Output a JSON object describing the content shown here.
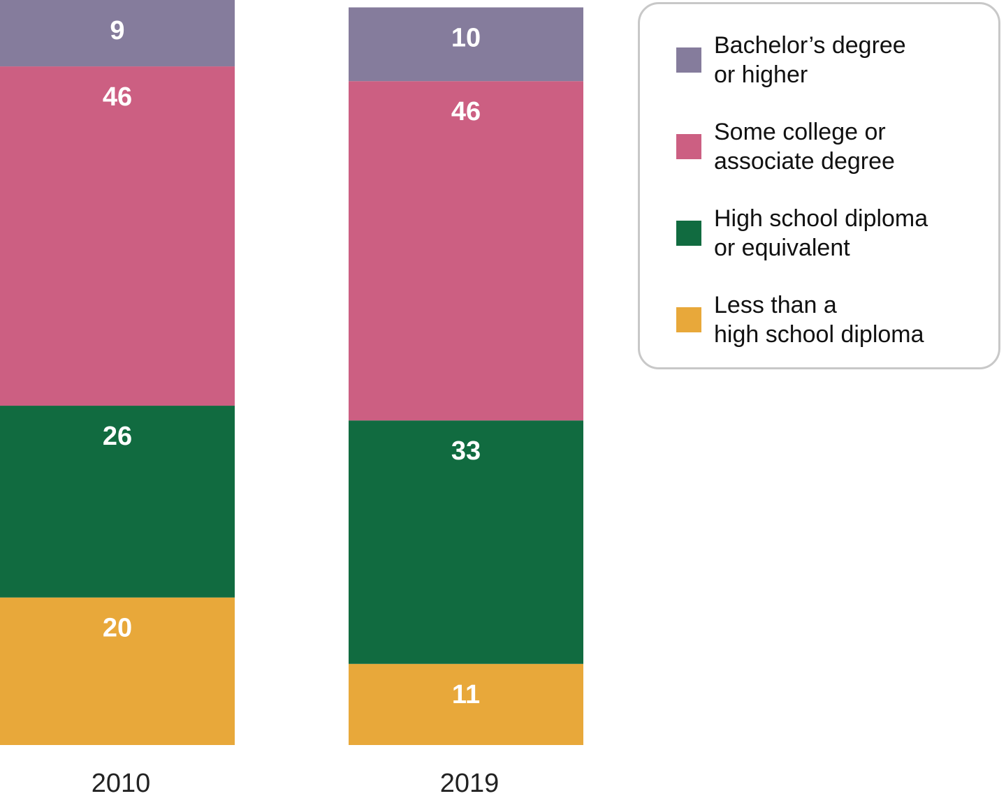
{
  "chart_data": {
    "type": "stacked_bar",
    "categories": [
      "2010",
      "2019"
    ],
    "ylim": [
      0,
      101
    ],
    "series": [
      {
        "name": "Bachelor’s degree\nor higher",
        "color": "#857c9c",
        "values": [
          9,
          10
        ]
      },
      {
        "name": "Some college or\nassociate degree",
        "color": "#cc5f82",
        "values": [
          46,
          46
        ]
      },
      {
        "name": "High school diploma\nor equivalent",
        "color": "#116b40",
        "values": [
          26,
          33
        ]
      },
      {
        "name": "Less than a\nhigh school diploma",
        "color": "#e8a83a",
        "values": [
          20,
          11
        ]
      }
    ]
  }
}
